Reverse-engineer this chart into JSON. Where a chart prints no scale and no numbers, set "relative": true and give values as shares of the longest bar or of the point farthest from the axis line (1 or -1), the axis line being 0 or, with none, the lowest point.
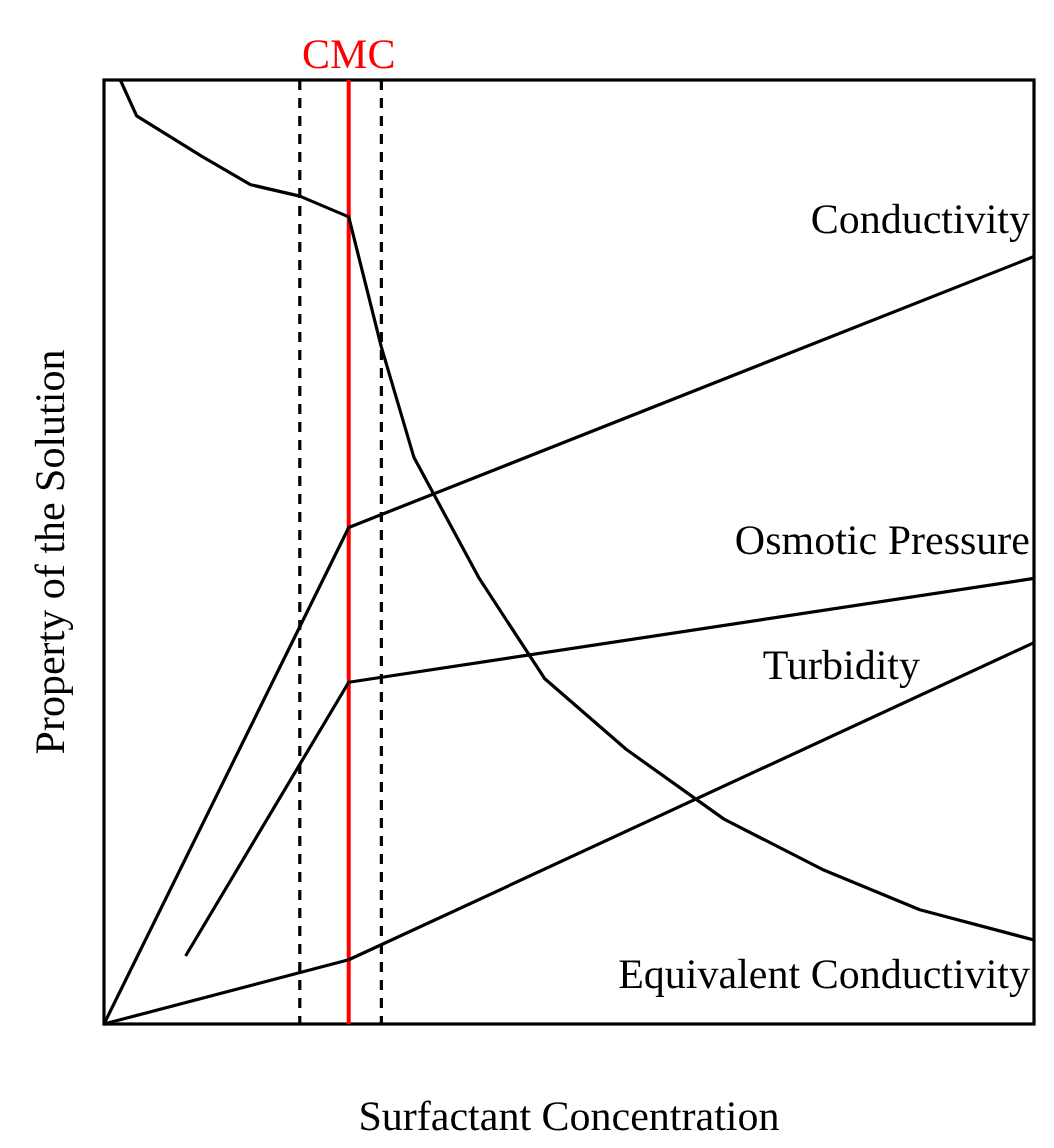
{
  "chart_data": {
    "type": "line",
    "relative": true,
    "xlabel": "Surfactant Concentration",
    "ylabel": "Property of the Solution",
    "line_style": "solid",
    "categories": [
      null,
      null,
      null,
      null,
      null,
      null,
      null,
      null,
      null,
      null,
      null,
      null,
      null,
      null,
      null,
      null,
      null,
      null,
      null,
      null,
      null,
      null,
      null,
      null,
      null,
      null,
      null,
      null,
      null,
      null,
      null,
      null,
      null,
      null,
      null,
      null,
      null,
      null,
      null,
      null,
      null,
      null,
      null,
      null,
      null,
      null,
      null,
      null,
      null,
      null,
      null,
      null,
      null,
      null,
      null,
      null,
      null,
      null
    ],
    "series": [
      {
        "name": "Conductivity",
        "color": "#000000",
        "values": [
          0,
          null,
          null,
          null,
          null,
          null,
          null,
          null,
          null,
          null,
          null,
          null,
          null,
          null,
          null,
          0.526,
          null,
          null,
          null,
          null,
          null,
          null,
          null,
          null,
          null,
          null,
          null,
          null,
          null,
          null,
          null,
          null,
          null,
          null,
          null,
          null,
          null,
          null,
          null,
          null,
          null,
          null,
          null,
          null,
          null,
          null,
          null,
          null,
          null,
          null,
          null,
          null,
          null,
          null,
          null,
          null,
          null,
          0.813
        ]
      },
      {
        "name": "Osmotic Pressure",
        "color": "#000000",
        "values": [
          null,
          null,
          null,
          null,
          null,
          0.072,
          null,
          null,
          null,
          null,
          null,
          null,
          null,
          null,
          null,
          0.362,
          null,
          null,
          null,
          null,
          null,
          null,
          null,
          null,
          null,
          null,
          null,
          null,
          null,
          null,
          null,
          null,
          null,
          null,
          null,
          null,
          null,
          null,
          null,
          null,
          null,
          null,
          null,
          null,
          null,
          null,
          null,
          null,
          null,
          null,
          null,
          null,
          null,
          null,
          null,
          null,
          null,
          0.472
        ]
      },
      {
        "name": "Turbidity",
        "color": "#000000",
        "values": [
          0,
          null,
          null,
          null,
          null,
          null,
          null,
          null,
          null,
          null,
          null,
          null,
          null,
          null,
          null,
          0.068,
          null,
          null,
          null,
          null,
          null,
          null,
          null,
          null,
          null,
          null,
          null,
          null,
          null,
          null,
          null,
          null,
          null,
          null,
          null,
          null,
          null,
          null,
          null,
          null,
          null,
          null,
          null,
          null,
          null,
          null,
          null,
          null,
          null,
          null,
          null,
          null,
          null,
          null,
          null,
          null,
          null,
          0.404
        ]
      },
      {
        "name": "Equivalent Conductivity",
        "color": "#000000",
        "values": [
          null,
          1,
          0.962,
          null,
          null,
          null,
          0.919,
          null,
          null,
          0.889,
          null,
          null,
          0.877,
          null,
          null,
          0.855,
          null,
          0.717,
          null,
          0.6,
          null,
          null,
          null,
          0.472,
          null,
          null,
          null,
          0.366,
          null,
          null,
          null,
          null,
          0.291,
          null,
          null,
          null,
          null,
          null,
          0.217,
          null,
          null,
          null,
          null,
          null,
          0.164,
          null,
          null,
          null,
          null,
          null,
          0.121,
          null,
          null,
          null,
          null,
          null,
          null,
          0.089
        ]
      }
    ],
    "annotations": [
      "CMC"
    ]
  }
}
